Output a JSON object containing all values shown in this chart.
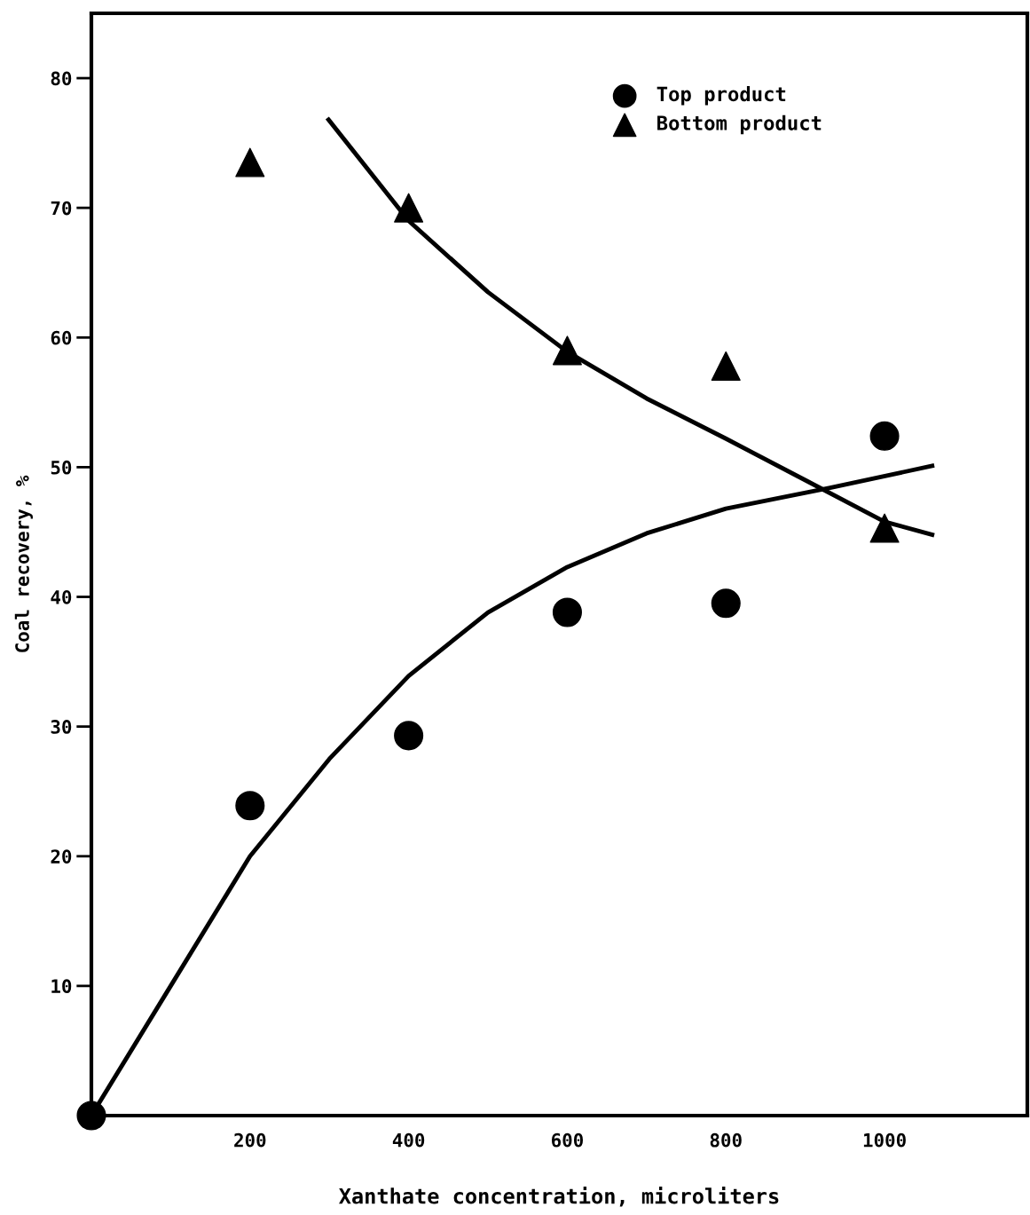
{
  "chart_data": {
    "type": "scatter",
    "xlabel": "Xanthate concentration, microliters",
    "ylabel": "Coal recovery, %",
    "xlim": [
      0,
      1180
    ],
    "ylim": [
      0,
      85
    ],
    "xticks": [
      200,
      400,
      600,
      800,
      1000
    ],
    "yticks": [
      10,
      20,
      30,
      40,
      50,
      60,
      70,
      80
    ],
    "legend": "top right",
    "grid": false,
    "series": [
      {
        "name": "Top product",
        "marker": "circle",
        "color": "#000000",
        "x": [
          0,
          200,
          400,
          600,
          800,
          1000
        ],
        "values": [
          0,
          23.9,
          29.3,
          38.8,
          39.5,
          52.4
        ]
      },
      {
        "name": "Bottom product",
        "marker": "triangle",
        "color": "#000000",
        "x": [
          200,
          400,
          600,
          800,
          1000
        ],
        "values": [
          73.5,
          70,
          59,
          57.8,
          45.3
        ]
      },
      {
        "type": "line",
        "marker": "none",
        "color": "#000000",
        "x": [
          0,
          100,
          200,
          300,
          400,
          500,
          600,
          700,
          800,
          930,
          1060
        ],
        "values": [
          0,
          10,
          20,
          27.5,
          33.9,
          38.8,
          42.3,
          44.9,
          46.8,
          48.4,
          50.1
        ]
      },
      {
        "type": "line",
        "marker": "none",
        "color": "#000000",
        "x": [
          299,
          400,
          500,
          600,
          700,
          800,
          900,
          1000,
          1060
        ],
        "values": [
          76.8,
          69,
          63.5,
          58.9,
          55.3,
          52.2,
          49,
          45.8,
          44.8
        ]
      }
    ]
  }
}
